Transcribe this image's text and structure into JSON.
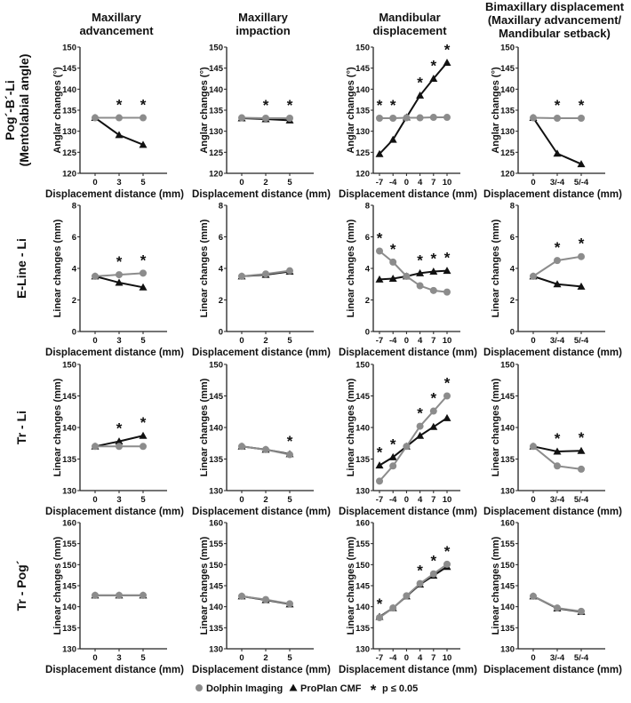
{
  "colors": {
    "dolphin": "#8c8c8c",
    "proplan": "#111111",
    "axis": "#222222"
  },
  "legend": {
    "dolphin": "Dolphin Imaging",
    "proplan": "ProPlan CMF",
    "sig": "p ≤ 0.05",
    "sig_symbol": "*"
  },
  "chart_data": {
    "type": "line",
    "column_titles": [
      [
        "Maxillary",
        "advancement"
      ],
      [
        "Maxillary",
        "impaction"
      ],
      [
        "Mandibular",
        "displacement"
      ],
      [
        "Bimaxillary displacement",
        "(Maxillary advancement/",
        "Mandibular setback)"
      ]
    ],
    "columns_x": [
      [
        "0",
        "3",
        "5"
      ],
      [
        "0",
        "2",
        "5"
      ],
      [
        "-7",
        "-4",
        "0",
        "4",
        "7",
        "10"
      ],
      [
        "0",
        "3/-4",
        "5/-4"
      ]
    ],
    "xlabel": "Displacement distance (mm)",
    "rows": [
      {
        "label": [
          "Pog´-B´-Li",
          "(Mentolabial angle)"
        ],
        "ylabel": "Anglar changes (°)",
        "ylim": [
          120,
          150
        ],
        "yticks": [
          120,
          125,
          130,
          135,
          140,
          145,
          150
        ],
        "panels": [
          {
            "dolphin": [
              133.2,
              133.2,
              133.2
            ],
            "proplan": [
              133.2,
              129.1,
              126.8
            ],
            "sig": [
              1,
              2
            ]
          },
          {
            "dolphin": [
              133.2,
              133.1,
              133.1
            ],
            "proplan": [
              133.1,
              132.9,
              132.6
            ],
            "sig": [
              1,
              2
            ]
          },
          {
            "dolphin": [
              133.1,
              133.1,
              133.2,
              133.2,
              133.3,
              133.3
            ],
            "proplan": [
              124.6,
              128.0,
              133.3,
              138.5,
              142.5,
              146.3
            ],
            "sig": [
              0,
              1,
              3,
              4,
              5
            ]
          },
          {
            "dolphin": [
              133.2,
              133.1,
              133.1
            ],
            "proplan": [
              133.2,
              124.7,
              122.2
            ],
            "sig": [
              1,
              2
            ]
          }
        ]
      },
      {
        "label": [
          "E-Line - Li"
        ],
        "ylabel": "Linear changes (mm)",
        "ylim": [
          0,
          8
        ],
        "yticks": [
          0,
          2,
          4,
          6,
          8
        ],
        "panels": [
          {
            "dolphin": [
              3.5,
              3.6,
              3.7
            ],
            "proplan": [
              3.5,
              3.1,
              2.8
            ],
            "sig": [
              1,
              2
            ]
          },
          {
            "dolphin": [
              3.5,
              3.65,
              3.85
            ],
            "proplan": [
              3.5,
              3.6,
              3.8
            ],
            "sig": []
          },
          {
            "dolphin": [
              5.1,
              4.4,
              3.5,
              2.9,
              2.6,
              2.5
            ],
            "proplan": [
              3.3,
              3.35,
              3.5,
              3.7,
              3.8,
              3.85
            ],
            "sig": [
              0,
              1,
              3,
              4,
              5
            ]
          },
          {
            "dolphin": [
              3.5,
              4.5,
              4.75
            ],
            "proplan": [
              3.5,
              3.0,
              2.85
            ],
            "sig": [
              1,
              2
            ]
          }
        ]
      },
      {
        "label": [
          "Tr - Li"
        ],
        "ylabel": "Linear changes (mm)",
        "ylim": [
          130,
          150
        ],
        "yticks": [
          130,
          135,
          140,
          145,
          150
        ],
        "panels": [
          {
            "dolphin": [
              137,
              137,
              137
            ],
            "proplan": [
              137,
              137.8,
              138.7
            ],
            "sig": [
              1,
              2
            ]
          },
          {
            "dolphin": [
              137,
              136.5,
              135.7
            ],
            "proplan": [
              137,
              136.5,
              135.8
            ],
            "sig": [
              2
            ]
          },
          {
            "dolphin": [
              131.5,
              133.9,
              137,
              140.2,
              142.6,
              145
            ],
            "proplan": [
              134,
              135.3,
              137,
              138.7,
              140.1,
              141.5
            ],
            "sig": [
              0,
              1,
              3,
              4,
              5
            ]
          },
          {
            "dolphin": [
              137,
              133.9,
              133.4
            ],
            "proplan": [
              137,
              136.2,
              136.3
            ],
            "sig": [
              1,
              2
            ]
          }
        ]
      },
      {
        "label": [
          "Tr - Pog´"
        ],
        "ylabel": "Linear changes (mm)",
        "ylim": [
          130,
          160
        ],
        "yticks": [
          130,
          135,
          140,
          145,
          150,
          155,
          160
        ],
        "panels": [
          {
            "dolphin": [
              142.7,
              142.7,
              142.7
            ],
            "proplan": [
              142.7,
              142.7,
              142.7
            ],
            "sig": []
          },
          {
            "dolphin": [
              142.5,
              141.7,
              140.7
            ],
            "proplan": [
              142.5,
              141.6,
              140.6
            ],
            "sig": []
          },
          {
            "dolphin": [
              137.4,
              139.7,
              142.6,
              145.5,
              147.8,
              150.1
            ],
            "proplan": [
              137.6,
              139.7,
              142.5,
              145.3,
              147.4,
              149.5
            ],
            "sig": [
              0,
              3,
              4,
              5
            ]
          },
          {
            "dolphin": [
              142.5,
              139.7,
              138.9
            ],
            "proplan": [
              142.5,
              139.6,
              138.8
            ],
            "sig": []
          }
        ]
      }
    ]
  }
}
